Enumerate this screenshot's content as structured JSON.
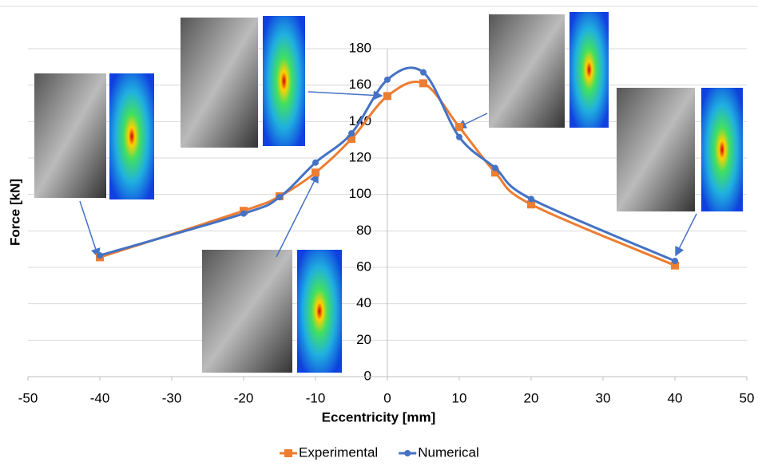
{
  "chart_data": {
    "type": "line",
    "x_label": "Eccentricity [mm]",
    "y_label": "Force [kN]",
    "x": [
      -40,
      -20,
      -15,
      -10,
      -5,
      0,
      5,
      10,
      15,
      20,
      40
    ],
    "series": [
      {
        "name": "Experimental",
        "color": "#ed7d31",
        "marker": "square",
        "values": [
          65.5,
          91,
          99,
          112,
          130.5,
          154,
          161,
          137,
          112,
          94.5,
          61
        ]
      },
      {
        "name": "Numerical",
        "color": "#4472c4",
        "marker": "circle",
        "values": [
          66.5,
          89.5,
          98.5,
          117.5,
          133.5,
          163,
          167,
          131.5,
          114.5,
          97.5,
          63.5
        ]
      }
    ],
    "xlim": [
      -50,
      50
    ],
    "xticks": [
      -50,
      -40,
      -30,
      -20,
      -10,
      0,
      10,
      20,
      30,
      40,
      50
    ],
    "ylim": [
      0,
      180
    ],
    "yticks": [
      0,
      20,
      40,
      60,
      80,
      100,
      120,
      140,
      160,
      180
    ],
    "grid": true,
    "legend": "bottom",
    "smooth": true
  }
}
